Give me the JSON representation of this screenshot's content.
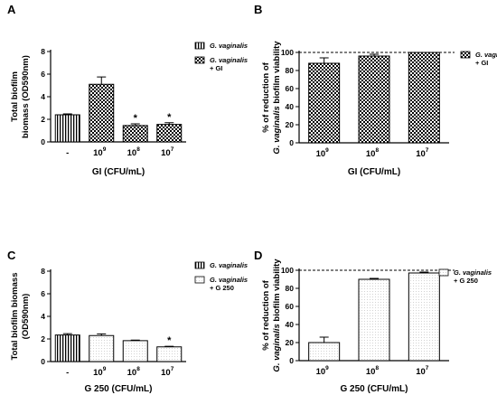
{
  "chart_data": [
    {
      "panel": "A",
      "type": "bar",
      "categories": [
        "-",
        "10^9",
        "10^8",
        "10^7"
      ],
      "values": [
        2.4,
        5.1,
        1.45,
        1.55
      ],
      "errors": [
        0.08,
        0.65,
        0.15,
        0.15
      ],
      "fills": [
        "vstripe",
        "check",
        "check",
        "check"
      ],
      "significance": [
        "",
        "",
        "*",
        "*"
      ],
      "ylim": [
        0,
        8
      ],
      "yticks": [
        0,
        2,
        4,
        6,
        8
      ],
      "ylabel_lines": [
        "Total biofilm",
        "biomass (OD590nm)"
      ],
      "xlabel": "GI (CFU/mL)",
      "legend": [
        {
          "fill": "vstripe",
          "lines": [
            "G. vaginalis"
          ]
        },
        {
          "fill": "check",
          "lines": [
            "G. vaginalis",
            "+ GI"
          ]
        }
      ]
    },
    {
      "panel": "B",
      "type": "bar",
      "categories": [
        "10^9",
        "10^8",
        "10^7"
      ],
      "values": [
        88,
        96,
        100
      ],
      "errors": [
        6,
        2,
        0
      ],
      "fills": [
        "check",
        "check",
        "check"
      ],
      "significance": [
        "",
        "",
        ""
      ],
      "ylim": [
        0,
        100
      ],
      "yticks": [
        0,
        20,
        40,
        60,
        80,
        100
      ],
      "reference_line": 100,
      "ylabel_lines": [
        "% of reduction of",
        "G. vaginalis biofilm viability"
      ],
      "xlabel": "GI (CFU/mL)",
      "legend": [
        {
          "fill": "check",
          "lines": [
            "G. vaginalis",
            "+ GI"
          ]
        }
      ]
    },
    {
      "panel": "C",
      "type": "bar",
      "categories": [
        "-",
        "10^9",
        "10^8",
        "10^7"
      ],
      "values": [
        2.35,
        2.3,
        1.85,
        1.3
      ],
      "errors": [
        0.12,
        0.15,
        0.05,
        0.05
      ],
      "fills": [
        "vstripe",
        "dots",
        "dots",
        "dots"
      ],
      "significance": [
        "",
        "",
        "",
        "*"
      ],
      "ylim": [
        0,
        8
      ],
      "yticks": [
        0,
        2,
        4,
        6,
        8
      ],
      "ylabel_lines": [
        "Total biofilm biomass",
        "(OD590nm)"
      ],
      "xlabel": "G 250 (CFU/mL)",
      "legend": [
        {
          "fill": "vstripe",
          "lines": [
            "G. vaginalis"
          ]
        },
        {
          "fill": "dots",
          "lines": [
            "G. vaginalis",
            "+ G 250"
          ]
        }
      ]
    },
    {
      "panel": "D",
      "type": "bar",
      "categories": [
        "10^9",
        "10^8",
        "10^7"
      ],
      "values": [
        20,
        90,
        97
      ],
      "errors": [
        6,
        1,
        1
      ],
      "fills": [
        "dots",
        "dots",
        "dots"
      ],
      "significance": [
        "",
        "",
        ""
      ],
      "ylim": [
        0,
        100
      ],
      "yticks": [
        0,
        20,
        40,
        60,
        80,
        100
      ],
      "reference_line": 100,
      "ylabel_lines": [
        "% of reduction of",
        "G. vaginalis biofilm viability"
      ],
      "xlabel": "G 250 (CFU/mL)",
      "legend": [
        {
          "fill": "dots",
          "lines": [
            "G. vaginalis",
            "+ G 250"
          ]
        }
      ]
    }
  ]
}
